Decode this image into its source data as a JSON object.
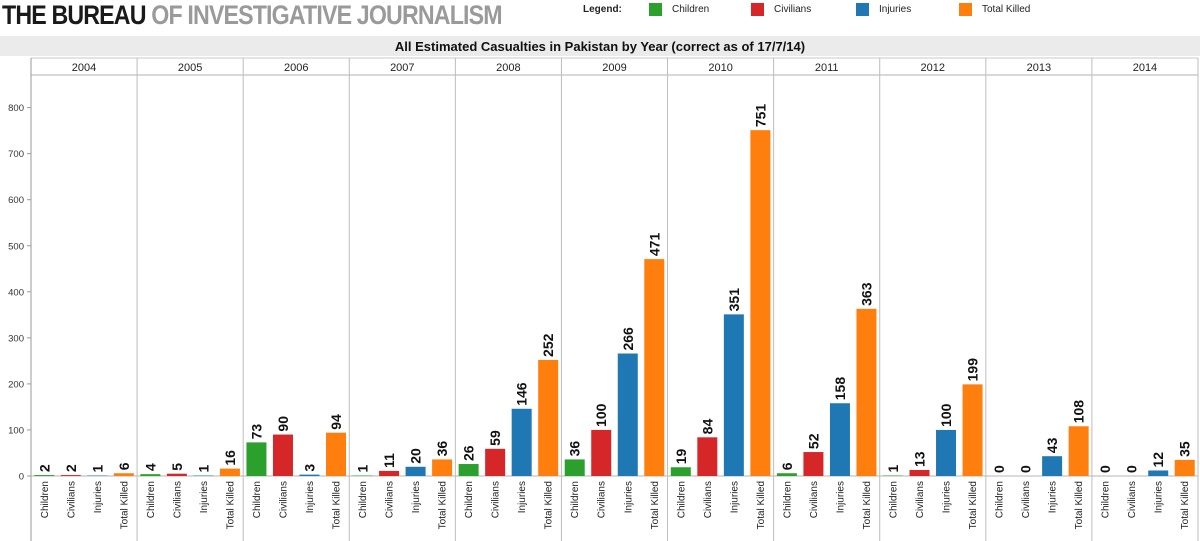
{
  "header": {
    "brand_bold": "THE BUREAU",
    "brand_light": "OF INVESTIGATIVE JOURNALISM",
    "legend_title": "Legend:"
  },
  "legend": [
    {
      "label": "Children",
      "color": "#2ca02c"
    },
    {
      "label": "Civilians",
      "color": "#d62728"
    },
    {
      "label": "Injuries",
      "color": "#1f77b4"
    },
    {
      "label": "Total Killed",
      "color": "#ff7f0e"
    }
  ],
  "chart_data": {
    "type": "bar",
    "title": "All Estimated Casualties in Pakistan by Year (correct as of 17/7/14)",
    "panels": [
      "2004",
      "2005",
      "2006",
      "2007",
      "2008",
      "2009",
      "2010",
      "2011",
      "2012",
      "2013",
      "2014"
    ],
    "categories": [
      "Children",
      "Civilians",
      "Injuries",
      "Total Killed"
    ],
    "colors": [
      "#2ca02c",
      "#d62728",
      "#1f77b4",
      "#ff7f0e"
    ],
    "values": [
      [
        2,
        2,
        1,
        6
      ],
      [
        4,
        5,
        1,
        16
      ],
      [
        73,
        90,
        3,
        94
      ],
      [
        1,
        11,
        20,
        36
      ],
      [
        26,
        59,
        146,
        252
      ],
      [
        36,
        100,
        266,
        471
      ],
      [
        19,
        84,
        351,
        751
      ],
      [
        6,
        52,
        158,
        363
      ],
      [
        1,
        13,
        100,
        199
      ],
      [
        0,
        0,
        43,
        108
      ],
      [
        0,
        0,
        12,
        35
      ]
    ],
    "yticks": [
      0,
      100,
      200,
      300,
      400,
      500,
      600,
      700,
      800
    ],
    "ylim": [
      0,
      850
    ],
    "grid": false
  }
}
